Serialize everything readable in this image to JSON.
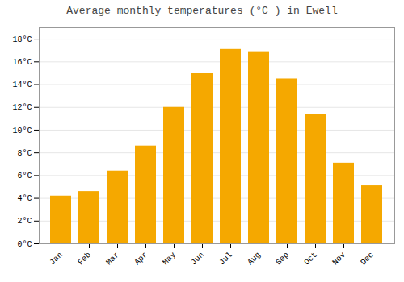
{
  "chart_data": {
    "type": "bar",
    "title": "Average monthly temperatures (°C ) in Ewell",
    "categories": [
      "Jan",
      "Feb",
      "Mar",
      "Apr",
      "May",
      "Jun",
      "Jul",
      "Aug",
      "Sep",
      "Oct",
      "Nov",
      "Dec"
    ],
    "values": [
      4.2,
      4.6,
      6.4,
      8.6,
      12.0,
      15.0,
      17.1,
      16.9,
      14.5,
      11.4,
      7.1,
      5.1
    ],
    "color": "#F5A800",
    "ylim": [
      0,
      19
    ],
    "yticks": [
      {
        "value": 0,
        "label": "0°C"
      },
      {
        "value": 2,
        "label": "2°C"
      },
      {
        "value": 4,
        "label": "4°C"
      },
      {
        "value": 6,
        "label": "6°C"
      },
      {
        "value": 8,
        "label": "8°C"
      },
      {
        "value": 10,
        "label": "10°C"
      },
      {
        "value": 12,
        "label": "12°C"
      },
      {
        "value": 14,
        "label": "14°C"
      },
      {
        "value": 16,
        "label": "16°C"
      },
      {
        "value": 18,
        "label": "18°C"
      }
    ],
    "grid": true
  }
}
